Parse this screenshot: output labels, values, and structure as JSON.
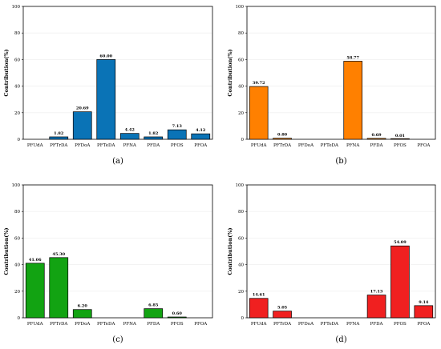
{
  "chart_data": [
    {
      "type": "bar",
      "panel_label": "(a)",
      "color": "#0a73b6",
      "categories": [
        "PFUdA",
        "PFTrDA",
        "PFDoA",
        "PFTeDA",
        "PFNA",
        "PFDA",
        "PFOS",
        "PFOA"
      ],
      "values": [
        0.0,
        1.82,
        20.69,
        60.0,
        4.42,
        1.82,
        7.13,
        4.12
      ],
      "value_labels": [
        "",
        "1.82",
        "20.69",
        "60.00",
        "4.42",
        "1.82",
        "7.13",
        "4.12"
      ],
      "ylabel": "Contribution(%)",
      "ylim": [
        0,
        100
      ],
      "yticks": [
        "0",
        "20",
        "40",
        "60",
        "80",
        "100"
      ],
      "grid": true
    },
    {
      "type": "bar",
      "panel_label": "(b)",
      "color": "#ff8000",
      "categories": [
        "PFUdA",
        "PFTrDA",
        "PFDoA",
        "PFTeDA",
        "PFNA",
        "PFDA",
        "PFOS",
        "PFOA"
      ],
      "values": [
        39.72,
        0.8,
        0.0,
        0.0,
        58.77,
        0.69,
        0.01,
        0.0
      ],
      "value_labels": [
        "39.72",
        "0.80",
        "",
        "",
        "58.77",
        "0.69",
        "0.01",
        ""
      ],
      "ylabel": "Contribution(%)",
      "ylim": [
        0,
        100
      ],
      "yticks": [
        "0",
        "20",
        "40",
        "60",
        "80",
        "100"
      ],
      "grid": true
    },
    {
      "type": "bar",
      "panel_label": "(c)",
      "color": "#12a312",
      "categories": [
        "PFUdA",
        "PFTrDA",
        "PFDoA",
        "PFTeDA",
        "PFNA",
        "PFDA",
        "PFOS",
        "PFOA"
      ],
      "values": [
        41.06,
        45.3,
        6.2,
        0.0,
        0.0,
        6.85,
        0.6,
        0.0
      ],
      "value_labels": [
        "41.06",
        "45.30",
        "6.20",
        "",
        "",
        "6.85",
        "0.60",
        ""
      ],
      "ylabel": "Contribution(%)",
      "ylim": [
        0,
        100
      ],
      "yticks": [
        "0",
        "20",
        "40",
        "60",
        "80",
        "100"
      ],
      "grid": true
    },
    {
      "type": "bar",
      "panel_label": "(d)",
      "color": "#f02020",
      "categories": [
        "PFUdA",
        "PFTrDA",
        "PFDoA",
        "PFTeDA",
        "PFNA",
        "PFDA",
        "PFOS",
        "PFOA"
      ],
      "values": [
        14.61,
        5.05,
        0.0,
        0.0,
        0.0,
        17.13,
        54.09,
        9.14
      ],
      "value_labels": [
        "14.61",
        "5.05",
        "",
        "",
        "",
        "17.13",
        "54.09",
        "9.14"
      ],
      "ylabel": "Contribution(%)",
      "ylim": [
        0,
        100
      ],
      "yticks": [
        "0",
        "20",
        "40",
        "60",
        "80",
        "100"
      ],
      "grid": true
    }
  ]
}
